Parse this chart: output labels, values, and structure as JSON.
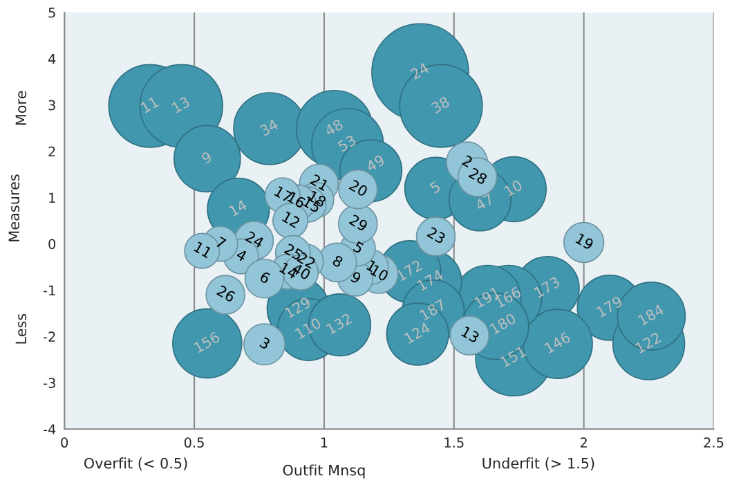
{
  "chart_data": {
    "type": "bubble",
    "xlabel": "Outfit Mnsq",
    "ylabel": "Measures",
    "annotations": [
      "Overfit (< 0.5)",
      "Underfit (> 1.5)",
      "More",
      "Less",
      {
        "text": "11",
        "x": 0.33,
        "y": 2.98
      },
      {
        "text": "13",
        "x": 0.45,
        "y": 2.98
      },
      {
        "text": "24",
        "x": 1.37,
        "y": 3.71
      },
      {
        "text": "38",
        "x": 1.45,
        "y": 2.98
      },
      {
        "text": "34",
        "x": 0.79,
        "y": 2.49
      },
      {
        "text": "9",
        "x": 0.55,
        "y": 1.84
      },
      {
        "text": "48",
        "x": 1.04,
        "y": 2.49
      },
      {
        "text": "53",
        "x": 1.09,
        "y": 2.15
      },
      {
        "text": "49",
        "x": 1.2,
        "y": 1.72
      },
      {
        "text": "5",
        "x": 1.43,
        "y": 1.2
      },
      {
        "text": "14",
        "x": 0.67,
        "y": 0.75
      },
      {
        "text": "10",
        "x": 1.73,
        "y": 1.18
      },
      {
        "text": "47",
        "x": 1.62,
        "y": 0.88
      },
      {
        "text": "179",
        "x": 2.1,
        "y": -1.38
      },
      {
        "text": "122",
        "x": 2.25,
        "y": -2.16
      },
      {
        "text": "184",
        "x": 2.26,
        "y": -1.56
      },
      {
        "text": "173",
        "x": 1.86,
        "y": -0.96
      },
      {
        "text": "151",
        "x": 1.73,
        "y": -2.46
      },
      {
        "text": "146",
        "x": 1.9,
        "y": -2.16
      },
      {
        "text": "166",
        "x": 1.71,
        "y": -1.18
      },
      {
        "text": "191",
        "x": 1.63,
        "y": -1.18
      },
      {
        "text": "180",
        "x": 1.69,
        "y": -1.75
      },
      {
        "text": "174",
        "x": 1.41,
        "y": -0.81
      },
      {
        "text": "172",
        "x": 1.33,
        "y": -0.6
      },
      {
        "text": "187",
        "x": 1.42,
        "y": -1.45
      },
      {
        "text": "124",
        "x": 1.36,
        "y": -1.95
      },
      {
        "text": "156",
        "x": 0.55,
        "y": -2.15
      },
      {
        "text": "129",
        "x": 0.9,
        "y": -1.4
      },
      {
        "text": "110",
        "x": 0.94,
        "y": -1.85
      },
      {
        "text": "132",
        "x": 1.06,
        "y": -1.75
      },
      {
        "text": "19",
        "x": 2.0,
        "y": 0.03
      },
      {
        "text": "2",
        "x": 1.55,
        "y": 1.76
      },
      {
        "text": "28",
        "x": 1.59,
        "y": 1.44
      },
      {
        "text": "23",
        "x": 1.43,
        "y": 0.16
      },
      {
        "text": "13",
        "x": 1.56,
        "y": -1.98
      },
      {
        "text": "10",
        "x": 1.21,
        "y": -0.65
      },
      {
        "text": "1",
        "x": 1.18,
        "y": -0.5
      },
      {
        "text": "9",
        "x": 1.12,
        "y": -0.75
      },
      {
        "text": "5",
        "x": 1.13,
        "y": -0.1
      },
      {
        "text": "8",
        "x": 1.05,
        "y": -0.4
      },
      {
        "text": "29",
        "x": 1.13,
        "y": 0.43
      },
      {
        "text": "20",
        "x": 1.13,
        "y": 1.18
      },
      {
        "text": "21",
        "x": 0.98,
        "y": 1.3
      },
      {
        "text": "18",
        "x": 0.97,
        "y": 0.95
      },
      {
        "text": "15",
        "x": 0.95,
        "y": 0.83
      },
      {
        "text": "16",
        "x": 0.89,
        "y": 0.93
      },
      {
        "text": "17",
        "x": 0.84,
        "y": 1.05
      },
      {
        "text": "12",
        "x": 0.87,
        "y": 0.5
      },
      {
        "text": "22",
        "x": 0.93,
        "y": -0.38
      },
      {
        "text": "25",
        "x": 0.88,
        "y": -0.2
      },
      {
        "text": "14",
        "x": 0.86,
        "y": -0.6
      },
      {
        "text": "40",
        "x": 0.91,
        "y": -0.62
      },
      {
        "text": "24",
        "x": 0.73,
        "y": 0.07
      },
      {
        "text": "4",
        "x": 0.68,
        "y": -0.27
      },
      {
        "text": "7",
        "x": 0.6,
        "y": 0.0
      },
      {
        "text": "11",
        "x": 0.53,
        "y": -0.15
      },
      {
        "text": "6",
        "x": 0.77,
        "y": -0.75
      },
      {
        "text": "26",
        "x": 0.62,
        "y": -1.1
      },
      {
        "text": "3",
        "x": 0.77,
        "y": -2.17
      }
    ],
    "xlim": [
      0,
      2.5
    ],
    "xticks": [
      0,
      0.5,
      1,
      1.5,
      2,
      2.5
    ],
    "ylim": [
      -4,
      5
    ],
    "yticks": [
      -4,
      -3,
      -2,
      -1,
      0,
      1,
      2,
      3,
      4,
      5
    ],
    "grid": "x",
    "series": [
      {
        "color": "#4097ae",
        "x": [
          0.33,
          0.45,
          1.37,
          1.45,
          0.79,
          0.55,
          1.04,
          1.09,
          1.18,
          1.43,
          0.67,
          1.73,
          1.6,
          2.1,
          2.25,
          2.26,
          1.86,
          1.73,
          1.9,
          1.71,
          1.63,
          1.66,
          1.41,
          1.33,
          1.42,
          1.36,
          0.55,
          0.9,
          0.94,
          1.06
        ],
        "values": [
          2.98,
          2.98,
          3.71,
          2.98,
          2.49,
          1.84,
          2.49,
          2.15,
          1.58,
          1.2,
          0.75,
          1.18,
          0.95,
          -1.38,
          -2.16,
          -1.56,
          -0.96,
          -2.46,
          -2.16,
          -1.18,
          -1.18,
          -1.78,
          -0.81,
          -0.6,
          -1.45,
          -1.95,
          -2.15,
          -1.4,
          -1.85,
          -1.75
        ],
        "sizes": [
          0.73,
          0.73,
          1,
          0.73,
          0.55,
          0.47,
          0.62,
          0.55,
          0.41,
          0.41,
          0.41,
          0.45,
          0.41,
          0.45,
          0.55,
          0.49,
          0.43,
          0.62,
          0.51,
          0.47,
          0.47,
          0.47,
          0.41,
          0.41,
          0.41,
          0.41,
          0.51,
          0.41,
          0.41,
          0.41
        ]
      },
      {
        "color": "#92c5d7",
        "x": [
          2.0,
          1.55,
          1.59,
          1.43,
          1.56,
          1.21,
          1.18,
          1.12,
          1.13,
          1.05,
          1.13,
          1.13,
          0.98,
          0.97,
          0.94,
          0.9,
          0.84,
          0.87,
          0.93,
          0.88,
          0.86,
          0.91,
          0.73,
          0.68,
          0.6,
          0.53,
          0.77,
          0.62,
          0.77
        ],
        "values": [
          0.03,
          1.76,
          1.44,
          0.16,
          -1.98,
          -0.65,
          -0.5,
          -0.75,
          -0.1,
          -0.4,
          0.43,
          1.18,
          1.3,
          0.95,
          0.85,
          0.9,
          1.05,
          0.5,
          -0.38,
          -0.2,
          -0.6,
          -0.62,
          0.07,
          -0.27,
          0.0,
          -0.15,
          -0.75,
          -1.1,
          -2.17
        ],
        "sizes": [
          0.17,
          0.18,
          0.16,
          0.16,
          0.16,
          0.16,
          0.13,
          0.13,
          0.13,
          0.16,
          0.16,
          0.16,
          0.16,
          0.13,
          0.13,
          0.13,
          0.13,
          0.13,
          0.13,
          0.13,
          0.13,
          0.13,
          0.16,
          0.13,
          0.13,
          0.13,
          0.16,
          0.16,
          0.18
        ]
      }
    ]
  }
}
